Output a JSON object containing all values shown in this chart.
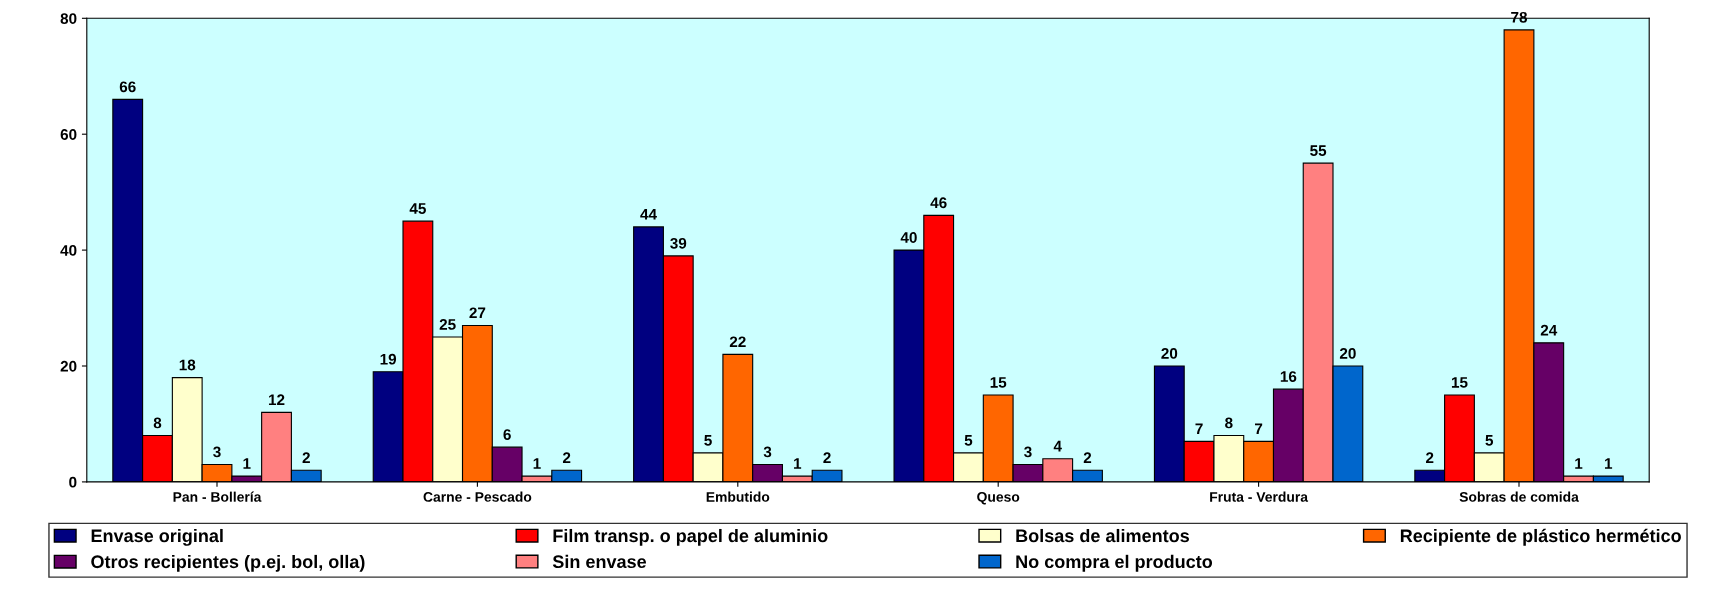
{
  "chart_data": {
    "type": "bar",
    "categories": [
      "Pan - Bollería",
      "Carne - Pescado",
      "Embutido",
      "Queso",
      "Fruta - Verdura",
      "Sobras de comida"
    ],
    "series": [
      {
        "name": "Envase original",
        "color": "#000080",
        "values": [
          66,
          19,
          44,
          40,
          20,
          2
        ]
      },
      {
        "name": "Film transp. o papel de aluminio",
        "color": "#ff0000",
        "values": [
          8,
          45,
          39,
          46,
          7,
          15
        ]
      },
      {
        "name": "Bolsas de alimentos",
        "color": "#ffffcc",
        "values": [
          18,
          25,
          5,
          5,
          8,
          5
        ]
      },
      {
        "name": "Recipiente de plástico hermético",
        "color": "#ff6600",
        "values": [
          3,
          27,
          22,
          15,
          7,
          78
        ]
      },
      {
        "name": "Otros recipientes (p.ej. bol, olla)",
        "color": "#660066",
        "values": [
          1,
          6,
          3,
          3,
          16,
          24
        ]
      },
      {
        "name": "Sin envase",
        "color": "#ff8080",
        "values": [
          12,
          1,
          1,
          4,
          55,
          1
        ]
      },
      {
        "name": "No compra el producto",
        "color": "#0066cc",
        "values": [
          2,
          2,
          2,
          2,
          20,
          1
        ]
      }
    ],
    "ylim": [
      0,
      80
    ],
    "yticks": [
      0,
      20,
      40,
      60,
      80
    ],
    "data_labels": true,
    "grid": false,
    "legend": "bottom"
  }
}
